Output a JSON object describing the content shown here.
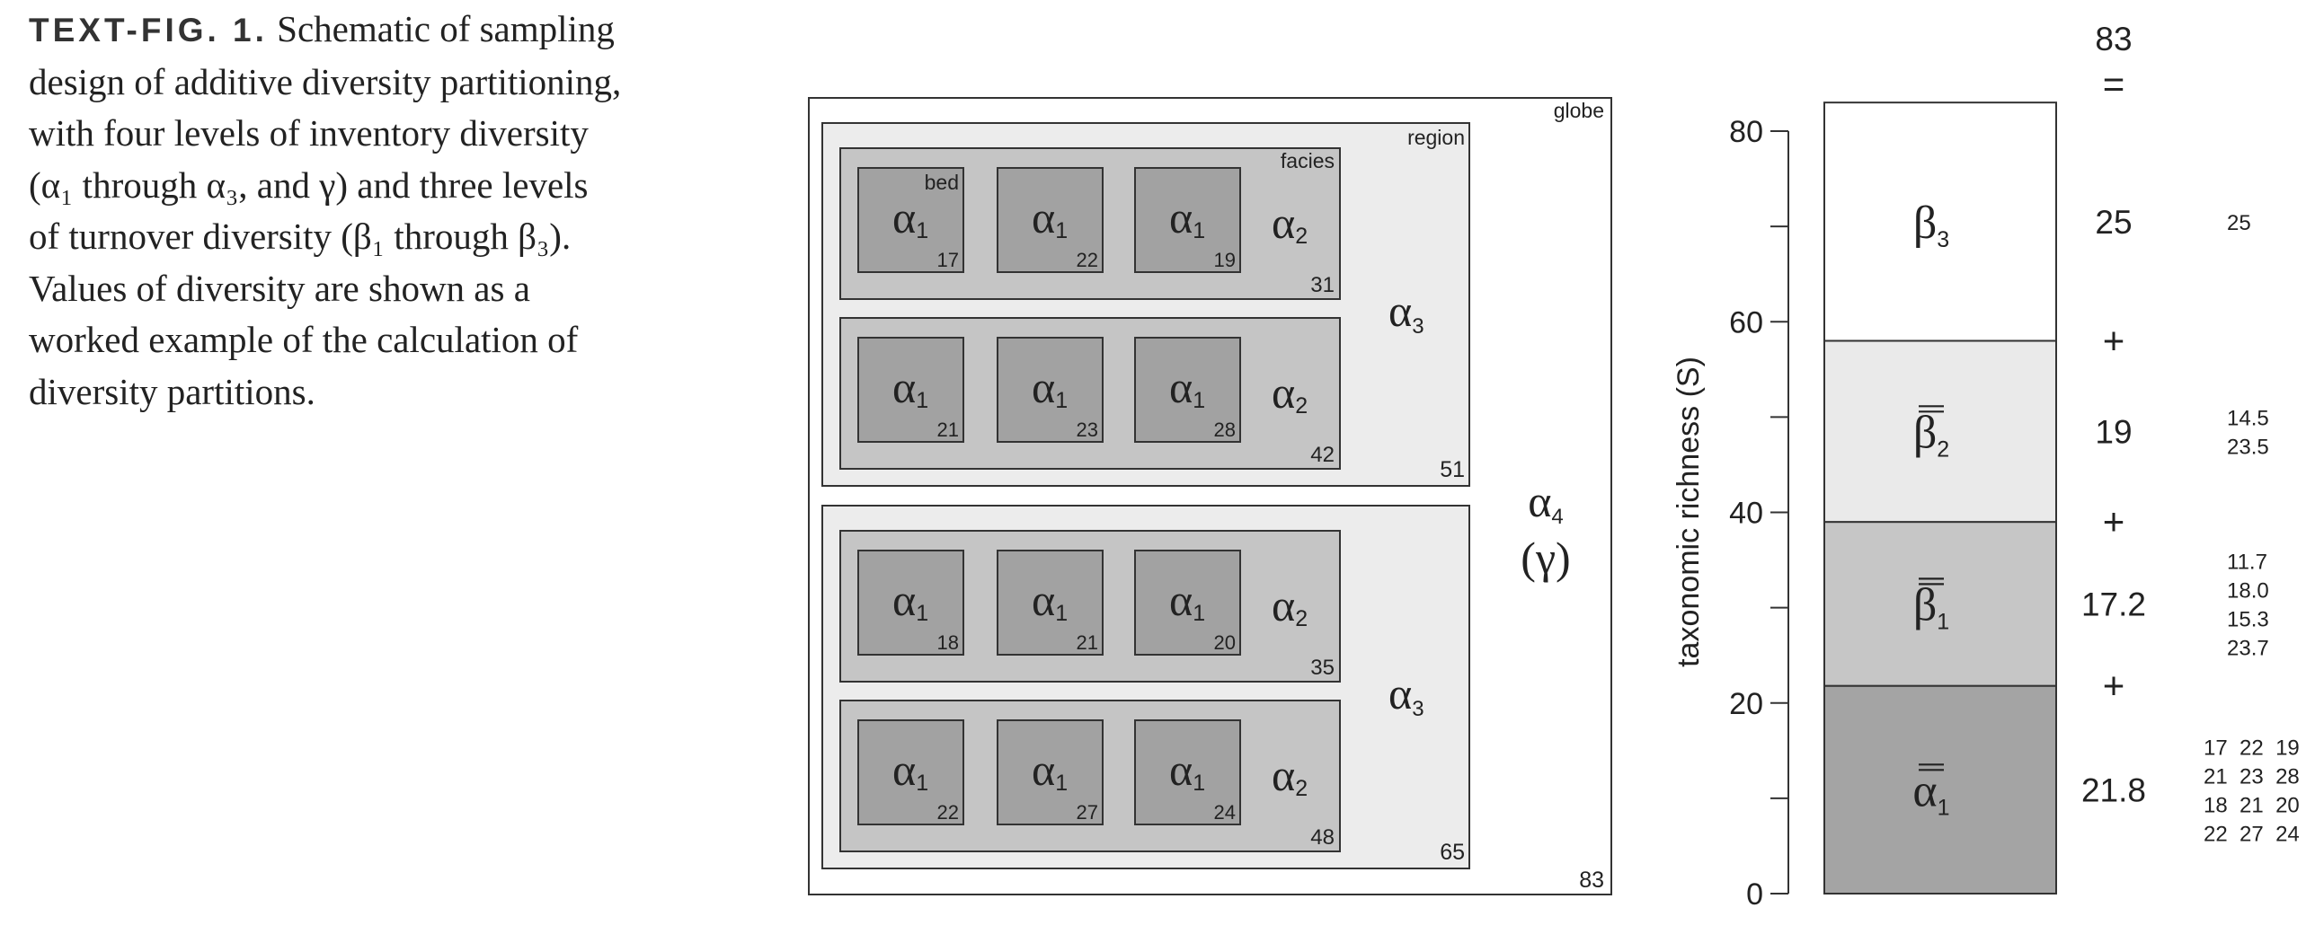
{
  "caption": {
    "label": "TEXT-FIG. 1.",
    "text": " Schematic of sampling\ndesign of additive diversity partitioning,\nwith four levels of inventory diversity\n(α₁ through α₃, and γ) and three levels\nof turnover diversity (β₁ through β₃).\nValues of diversity are shown as a\nworked example of the calculation of\ndiversity partitions."
  },
  "schematic": {
    "globe_label": "globe",
    "globe_value": "83",
    "alpha4_label": "α4",
    "gamma_label": "(γ)",
    "regions": [
      {
        "label": "region",
        "value": "51",
        "alpha3_label": "α3",
        "facies": [
          {
            "label": "facies",
            "value": "31",
            "alpha2_label": "α2",
            "beds": [
              {
                "label": "bed",
                "symbol": "α1",
                "value": "17"
              },
              {
                "symbol": "α1",
                "value": "22"
              },
              {
                "symbol": "α1",
                "value": "19"
              }
            ]
          },
          {
            "value": "42",
            "alpha2_label": "α2",
            "beds": [
              {
                "symbol": "α1",
                "value": "21"
              },
              {
                "symbol": "α1",
                "value": "23"
              },
              {
                "symbol": "α1",
                "value": "28"
              }
            ]
          }
        ]
      },
      {
        "value": "65",
        "alpha3_label": "α3",
        "facies": [
          {
            "value": "35",
            "alpha2_label": "α2",
            "beds": [
              {
                "symbol": "α1",
                "value": "18"
              },
              {
                "symbol": "α1",
                "value": "21"
              },
              {
                "symbol": "α1",
                "value": "20"
              }
            ]
          },
          {
            "value": "48",
            "alpha2_label": "α2",
            "beds": [
              {
                "symbol": "α1",
                "value": "22"
              },
              {
                "symbol": "α1",
                "value": "27"
              },
              {
                "symbol": "α1",
                "value": "24"
              }
            ]
          }
        ]
      }
    ]
  },
  "chart_data": {
    "type": "bar",
    "ylabel": "taxonomic richness (S)",
    "ylim": [
      0,
      80
    ],
    "yticks": [
      "0",
      "20",
      "40",
      "60",
      "80"
    ],
    "stacked_total": 83,
    "top_label": "83",
    "equals_sign": "=",
    "components": [
      {
        "name": "ᾱ₁",
        "symbol": "α",
        "subscript": "1",
        "double_bar": true,
        "value": 21.8,
        "value_label": "21.8",
        "color": "#a4a4a4",
        "detail": [
          "17  22  19",
          "21  23  28",
          "18  21  20",
          "22  27  24"
        ]
      },
      {
        "name": "β̄₁",
        "symbol": "β",
        "subscript": "1",
        "double_bar": true,
        "value": 17.2,
        "value_label": "17.2",
        "color": "#c6c6c6",
        "detail": [
          "11.7",
          "18.0",
          "15.3",
          "23.7"
        ]
      },
      {
        "name": "β̄₂",
        "symbol": "β",
        "subscript": "2",
        "double_bar": true,
        "value": 19,
        "value_label": "19",
        "color": "#eaeaea",
        "detail": [
          "14.5",
          "23.5"
        ]
      },
      {
        "name": "β₃",
        "symbol": "β",
        "subscript": "3",
        "double_bar": false,
        "value": 25,
        "value_label": "25",
        "color": "#ffffff",
        "detail": [
          "25"
        ]
      }
    ],
    "plus_sign": "+"
  },
  "colors": {
    "globe_fill": "#ffffff",
    "region_fill": "#ececec",
    "facies_fill": "#c5c5c5",
    "bed_fill": "#a2a2a2",
    "stroke": "#333333"
  }
}
